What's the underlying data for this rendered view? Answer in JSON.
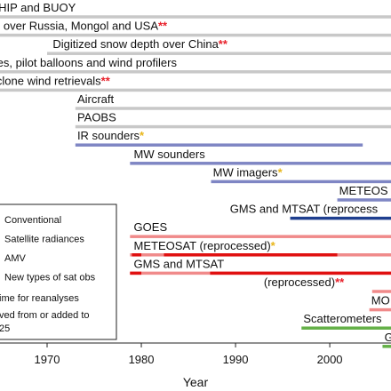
{
  "colors": {
    "conventional": "#c8c8c8",
    "satellite_radiances": "#7f86c4",
    "amv": "#f08a8a",
    "new_types": "#64b048",
    "star_red": "#e8202a",
    "star_yellow": "#e8b61a",
    "dark_blue": "#1f3f8f",
    "dark_red": "#e01010"
  },
  "legend": {
    "items": [
      {
        "label": "Conventional",
        "color": "#c8c8c8"
      },
      {
        "label": "Satellite radiances",
        "color": "#7f86c4"
      },
      {
        "label": "AMV",
        "color": "#f08a8a"
      },
      {
        "label": "New types of sat obs",
        "color": "#64b048"
      }
    ],
    "note_lines": [
      "ime for reanalyses",
      "ved from or added to",
      "25"
    ]
  },
  "chart_data": {
    "type": "timeline",
    "xlabel": "Year",
    "xlim": [
      1965,
      2006.5
    ],
    "xticks": [
      1970,
      1980,
      1990,
      2000
    ],
    "rows": [
      {
        "label": "SHIP and BUOY",
        "suffix": "",
        "suffix_color": "",
        "label_x": 1964.0,
        "start": 1964.0,
        "end": 2007,
        "color": "#c8c8c8"
      },
      {
        "label": "th over Russia, Mongol and USA",
        "suffix": "**",
        "suffix_color": "#e8202a",
        "label_x": 1964.0,
        "start": 1964.0,
        "end": 2007,
        "color": "#c8c8c8"
      },
      {
        "label": "Digitized snow depth over China",
        "suffix": "**",
        "suffix_color": "#e8202a",
        "label_x": 1970.6,
        "start": 1970.0,
        "end": 2007,
        "color": "#c8c8c8"
      },
      {
        "label": "des, pilot balloons and wind profilers",
        "suffix": "",
        "suffix_color": "",
        "label_x": 1964.0,
        "start": 1964.0,
        "end": 2007,
        "color": "#c8c8c8"
      },
      {
        "label": "yclone wind retrievals",
        "suffix": "**",
        "suffix_color": "#e8202a",
        "label_x": 1964.0,
        "start": 1964.0,
        "end": 2007,
        "color": "#c8c8c8"
      },
      {
        "label": "Aircraft",
        "suffix": "",
        "suffix_color": "",
        "label_x": 1973.2,
        "start": 1973.0,
        "end": 2007,
        "color": "#c8c8c8"
      },
      {
        "label": "PAOBS",
        "suffix": "",
        "suffix_color": "",
        "label_x": 1973.2,
        "start": 1973.0,
        "end": 2007,
        "color": "#c8c8c8"
      },
      {
        "label": "IR sounders",
        "suffix": "*",
        "suffix_color": "#e8b61a",
        "label_x": 1973.2,
        "start": 1973.0,
        "end": 2003.5,
        "color": "#7f86c4"
      },
      {
        "label": "MW sounders",
        "suffix": "",
        "suffix_color": "",
        "label_x": 1979.2,
        "start": 1978.8,
        "end": 2007,
        "color": "#7f86c4"
      },
      {
        "label": "MW imagers",
        "suffix": "*",
        "suffix_color": "#e8b61a",
        "label_x": 1987.6,
        "start": 1987.4,
        "end": 2007,
        "color": "#7f86c4"
      },
      {
        "label": "METEOS",
        "suffix": "",
        "suffix_color": "",
        "label_x": 2001.0,
        "start": 2000.8,
        "end": 2007,
        "color": "#7f86c4"
      },
      {
        "label": "GMS and MTSAT (reprocess",
        "suffix": "",
        "suffix_color": "",
        "label_x": 1989.4,
        "start": 1995.8,
        "end": 2007,
        "color": "#1f3f8f"
      },
      {
        "label": "GOES",
        "suffix": "",
        "suffix_color": "",
        "label_x": 1979.2,
        "start": 1978.8,
        "end": 2007,
        "color": "#f08a8a"
      },
      {
        "label": "METEOSAT (reprocessed)",
        "suffix": "*",
        "suffix_color": "#e8b61a",
        "label_x": 1979.2,
        "start": 1978.8,
        "end": 2007,
        "color": "#f08a8a"
      },
      {
        "label": "GMS and MTSAT",
        "suffix": "",
        "suffix_color": "",
        "label_x": 1979.2,
        "start": 1978.8,
        "end": 2007,
        "color": "#f08a8a"
      },
      {
        "label": "(reprocessed)",
        "suffix": "**",
        "suffix_color": "#e8202a",
        "label_x": 1993.0,
        "start": 2004.5,
        "end": 2007,
        "color": "#f08a8a"
      },
      {
        "label": "MO",
        "suffix": "",
        "suffix_color": "",
        "label_x": 2004.4,
        "start": 2004.2,
        "end": 2007,
        "color": "#f08a8a"
      },
      {
        "label": "Scatterometers",
        "suffix": "",
        "suffix_color": "",
        "label_x": 1997.2,
        "start": 1997.0,
        "end": 2007,
        "color": "#64b048"
      },
      {
        "label": "G",
        "suffix": "",
        "suffix_color": "",
        "label_x": 2005.8,
        "start": 2005.6,
        "end": 2007,
        "color": "#64b048"
      }
    ],
    "overlays": [
      {
        "row": 13,
        "start": 1979.0,
        "end": 1980.0,
        "color": "#e01010"
      },
      {
        "row": 13,
        "start": 1982.4,
        "end": 2000.8,
        "color": "#e01010"
      },
      {
        "row": 14,
        "start": 1978.8,
        "end": 1980.0,
        "color": "#e01010"
      },
      {
        "row": 14,
        "start": 1987.3,
        "end": 2007,
        "color": "#e01010"
      }
    ]
  }
}
